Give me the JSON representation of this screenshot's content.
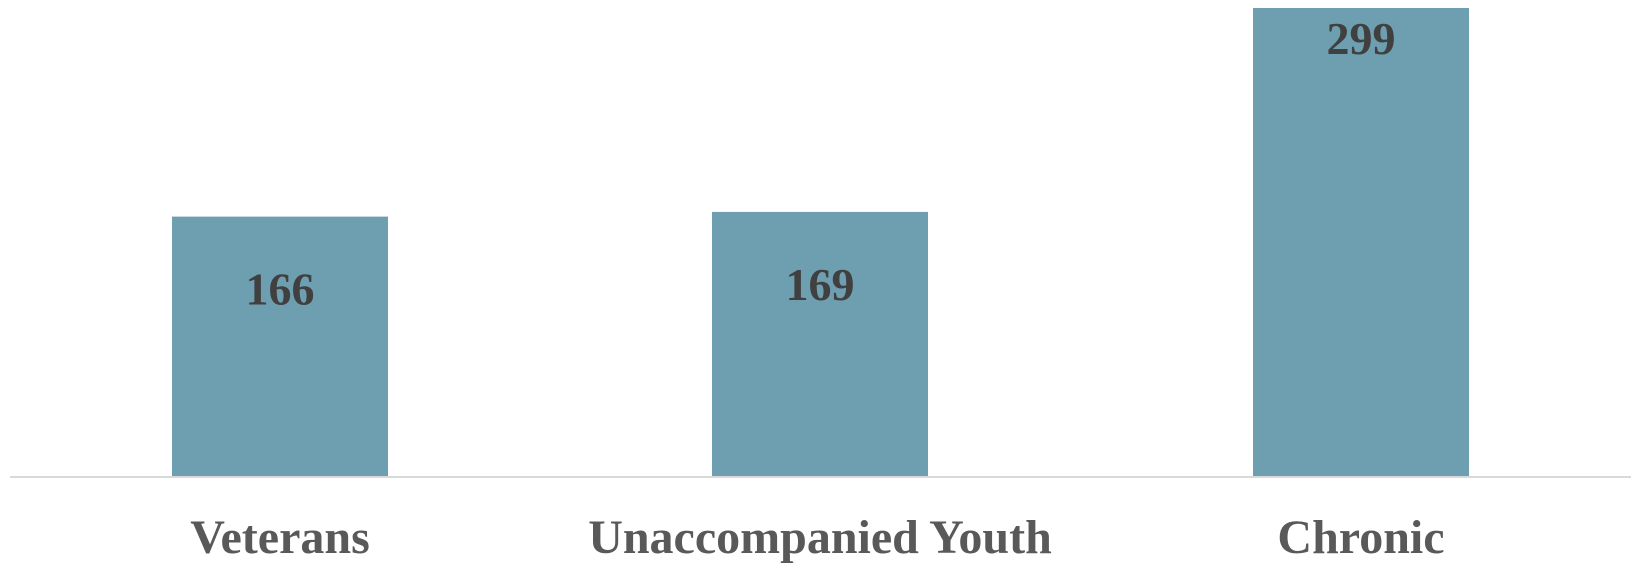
{
  "chart_data": {
    "type": "bar",
    "categories": [
      "Veterans",
      "Unaccompanied Youth",
      "Chronic"
    ],
    "values": [
      166,
      169,
      299
    ],
    "ylim": [
      0,
      299
    ],
    "grid": false,
    "data_labels": true,
    "bar_color": "#6e9fb0",
    "axis_color": "#d9d9d9",
    "label_color": "#404040",
    "category_label_color": "#595959"
  }
}
